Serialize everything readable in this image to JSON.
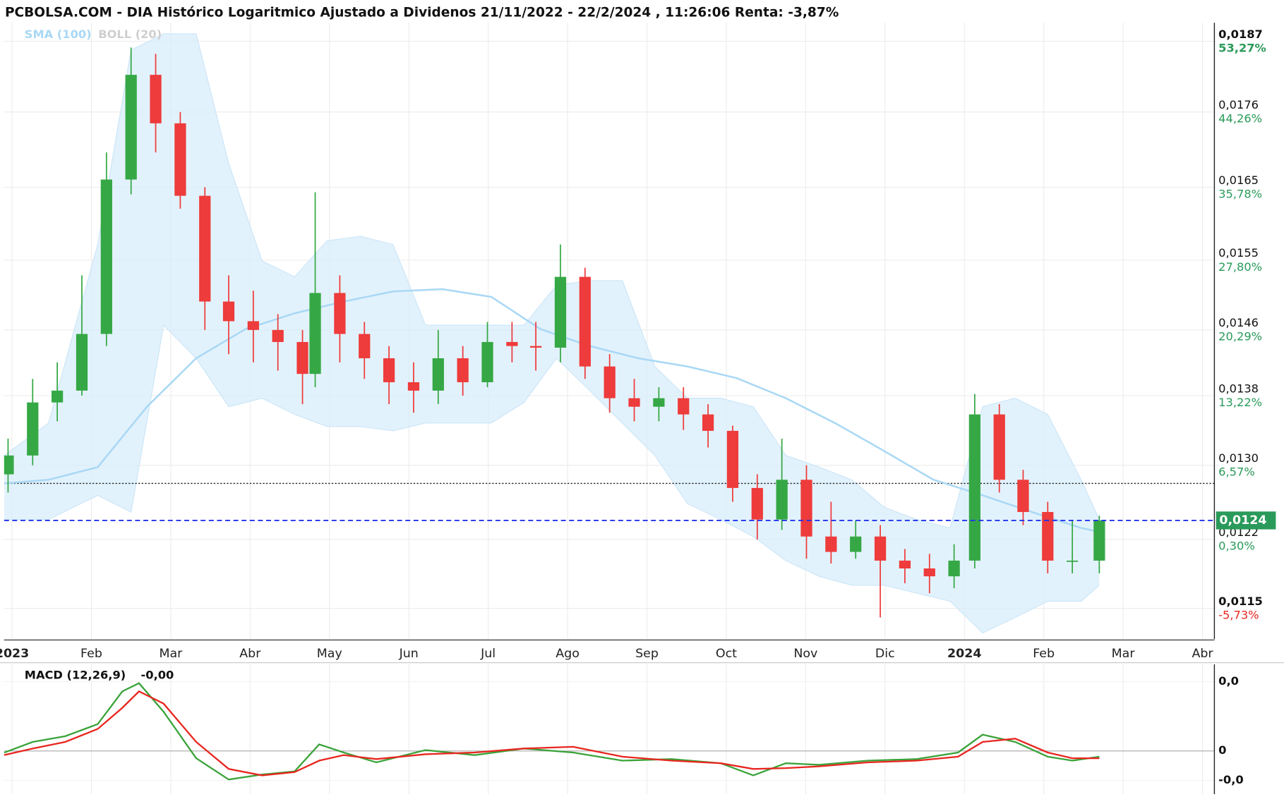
{
  "chart_data": [
    {
      "type": "candlestick",
      "title": "PCBOLSA.COM - DIA Histórico Logaritmico Ajustado a Dividenos 21/11/2022 - 22/2/2024 , 11:26:06 Renta: -3,87%",
      "log_scale": true,
      "grid": true,
      "xlim": [
        -0.1,
        15.15
      ],
      "xticks": [
        {
          "value": 0,
          "label": "2023"
        },
        {
          "value": 1,
          "label": "Feb"
        },
        {
          "value": 2,
          "label": "Mar"
        },
        {
          "value": 3,
          "label": "Abr"
        },
        {
          "value": 4,
          "label": "May"
        },
        {
          "value": 5,
          "label": "Jun"
        },
        {
          "value": 6,
          "label": "Jul"
        },
        {
          "value": 7,
          "label": "Ago"
        },
        {
          "value": 8,
          "label": "Sep"
        },
        {
          "value": 9,
          "label": "Oct"
        },
        {
          "value": 10,
          "label": "Nov"
        },
        {
          "value": 11,
          "label": "Dic"
        },
        {
          "value": 12,
          "label": "2024"
        },
        {
          "value": 13,
          "label": "Feb"
        },
        {
          "value": 14,
          "label": "Mar"
        },
        {
          "value": 15,
          "label": "Abr"
        }
      ],
      "ylim": [
        0.0112,
        0.019
      ],
      "yticks": [
        {
          "value": 0.0187,
          "label": "0,0187"
        },
        {
          "value": 0.0176,
          "label": "0,0176"
        },
        {
          "value": 0.0165,
          "label": "0,0165"
        },
        {
          "value": 0.0155,
          "label": "0,0155"
        },
        {
          "value": 0.0146,
          "label": "0,0146"
        },
        {
          "value": 0.0138,
          "label": "0,0138"
        },
        {
          "value": 0.013,
          "label": "0,0130"
        },
        {
          "value": 0.0122,
          "label": "0,0122"
        },
        {
          "value": 0.0115,
          "label": "0,0115"
        }
      ],
      "ytick_returns": [
        {
          "value": 53.27,
          "label": "53,27%"
        },
        {
          "value": 44.26,
          "label": "44,26%"
        },
        {
          "value": 35.78,
          "label": "35,78%"
        },
        {
          "value": 27.8,
          "label": "27,80%"
        },
        {
          "value": 20.29,
          "label": "20,29%"
        },
        {
          "value": 13.22,
          "label": "13,22%"
        },
        {
          "value": 6.57,
          "label": "6,57%"
        },
        {
          "value": 0.3,
          "label": "0,30%"
        },
        {
          "value": -5.73,
          "label": "-5,73%"
        }
      ],
      "current_price": {
        "value": 0.0124,
        "label": "0,0124"
      },
      "current_color": "#2a9a5a",
      "reference_line": 0.0128,
      "up_color": "#35a845",
      "down_color": "#ee3b3b",
      "x": [
        -0.05,
        0.26,
        0.57,
        0.88,
        1.19,
        1.5,
        1.81,
        2.12,
        2.43,
        2.73,
        3.04,
        3.35,
        3.66,
        3.82,
        4.13,
        4.44,
        4.75,
        5.06,
        5.37,
        5.68,
        5.99,
        6.3,
        6.6,
        6.91,
        7.22,
        7.53,
        7.84,
        8.15,
        8.46,
        8.77,
        9.08,
        9.39,
        9.7,
        10.01,
        10.32,
        10.63,
        10.94,
        11.25,
        11.56,
        11.87,
        12.13,
        12.44,
        12.74,
        13.05,
        13.36,
        13.7
      ],
      "open": [
        0.0129,
        0.01311,
        0.01372,
        0.01386,
        0.01455,
        0.01661,
        0.01817,
        0.01743,
        0.01638,
        0.01496,
        0.01471,
        0.0146,
        0.01445,
        0.01406,
        0.01507,
        0.01455,
        0.01425,
        0.01396,
        0.01386,
        0.01425,
        0.01396,
        0.01445,
        0.0144,
        0.01438,
        0.01528,
        0.01415,
        0.01377,
        0.01367,
        0.01377,
        0.01358,
        0.01339,
        0.01275,
        0.01241,
        0.01284,
        0.01223,
        0.01207,
        0.01223,
        0.01198,
        0.0119,
        0.01182,
        0.01198,
        0.01358,
        0.01284,
        0.01249,
        0.01198,
        0.01198
      ],
      "high": [
        0.0133,
        0.014,
        0.0142,
        0.0153,
        0.017,
        0.0186,
        0.0185,
        0.0176,
        0.0165,
        0.0153,
        0.0151,
        0.0148,
        0.0146,
        0.01643,
        0.0153,
        0.0147,
        0.0144,
        0.0142,
        0.0146,
        0.0144,
        0.0147,
        0.0147,
        0.0147,
        0.01571,
        0.0154,
        0.0143,
        0.014,
        0.0139,
        0.0139,
        0.0137,
        0.01345,
        0.0129,
        0.0133,
        0.013,
        0.0126,
        0.0124,
        0.01235,
        0.0121,
        0.01205,
        0.01215,
        0.01382,
        0.0137,
        0.01295,
        0.0126,
        0.0124,
        0.01245
      ],
      "low": [
        0.0127,
        0.013,
        0.0135,
        0.0138,
        0.0144,
        0.0164,
        0.017,
        0.0162,
        0.0146,
        0.0143,
        0.0142,
        0.0141,
        0.0137,
        0.0139,
        0.0142,
        0.014,
        0.0137,
        0.0136,
        0.0137,
        0.0138,
        0.0139,
        0.0142,
        0.0141,
        0.0142,
        0.014,
        0.0136,
        0.0135,
        0.0135,
        0.0134,
        0.0132,
        0.0126,
        0.0122,
        0.0123,
        0.012,
        0.01195,
        0.012,
        0.01141,
        0.01175,
        0.01165,
        0.0117,
        0.0119,
        0.0127,
        0.01235,
        0.01185,
        0.01185,
        0.01185
      ],
      "close": [
        0.01311,
        0.01372,
        0.01386,
        0.01455,
        0.01661,
        0.01817,
        0.01743,
        0.01638,
        0.01496,
        0.01471,
        0.0146,
        0.01445,
        0.01406,
        0.01507,
        0.01455,
        0.01425,
        0.01396,
        0.01386,
        0.01425,
        0.01396,
        0.01445,
        0.0144,
        0.01438,
        0.01528,
        0.01415,
        0.01377,
        0.01367,
        0.01377,
        0.01358,
        0.01339,
        0.01275,
        0.01241,
        0.01284,
        0.01223,
        0.01207,
        0.01223,
        0.01198,
        0.0119,
        0.01182,
        0.01198,
        0.01358,
        0.01284,
        0.01249,
        0.01198,
        0.01198,
        0.0124
      ],
      "sma": {
        "name": "SMA (100)",
        "color": "#a9d8f5",
        "x": [
          -0.1,
          0.46,
          1.08,
          1.7,
          2.32,
          2.94,
          3.56,
          4.18,
          4.8,
          5.42,
          6.04,
          6.66,
          7.28,
          7.89,
          8.51,
          9.13,
          9.75,
          10.37,
          10.99,
          11.61,
          12.23,
          12.85,
          13.47,
          13.7
        ],
        "values": [
          0.0128,
          0.01284,
          0.01298,
          0.01367,
          0.01425,
          0.01461,
          0.01481,
          0.01496,
          0.01509,
          0.01512,
          0.01502,
          0.01461,
          0.0144,
          0.01425,
          0.01415,
          0.01401,
          0.01377,
          0.01348,
          0.01316,
          0.01284,
          0.01267,
          0.01249,
          0.01232,
          0.01228
        ]
      },
      "bollinger": {
        "name": "BOLL (20)",
        "color": "#d8edfb",
        "label_color": "#cfcfcf",
        "x": [
          -0.1,
          0.46,
          1.08,
          1.5,
          1.91,
          2.32,
          2.73,
          3.15,
          3.56,
          3.97,
          4.39,
          4.8,
          5.21,
          5.62,
          6.04,
          6.45,
          6.86,
          7.28,
          7.69,
          8.1,
          8.51,
          8.93,
          9.34,
          9.75,
          10.17,
          10.58,
          10.99,
          11.4,
          11.82,
          12.23,
          12.64,
          13.05,
          13.47,
          13.7
        ],
        "upper": [
          0.01311,
          0.01348,
          0.01571,
          0.01856,
          0.01882,
          0.01882,
          0.01684,
          0.01549,
          0.01528,
          0.01576,
          0.01582,
          0.01571,
          0.01466,
          0.01466,
          0.01466,
          0.01466,
          0.01517,
          0.01523,
          0.01523,
          0.01415,
          0.01377,
          0.01377,
          0.01367,
          0.01311,
          0.01298,
          0.01284,
          0.01254,
          0.01241,
          0.01232,
          0.01367,
          0.01377,
          0.01358,
          0.01284,
          0.01241
        ],
        "lower": [
          0.01241,
          0.01241,
          0.01267,
          0.01249,
          0.01466,
          0.01425,
          0.01367,
          0.01377,
          0.01358,
          0.01344,
          0.01344,
          0.01339,
          0.01348,
          0.01348,
          0.01348,
          0.01372,
          0.01425,
          0.01386,
          0.01348,
          0.01311,
          0.01258,
          0.01241,
          0.01223,
          0.01198,
          0.01182,
          0.01173,
          0.01173,
          0.01165,
          0.01157,
          0.01126,
          0.01141,
          0.01157,
          0.01157,
          0.01173
        ]
      }
    },
    {
      "type": "line",
      "title": "MACD (12,26,9)",
      "annotation": "-0,00",
      "ylim": [
        -0.00025,
        0.0005
      ],
      "yticks": [
        {
          "value": 0.0004,
          "label": "0,0"
        },
        0,
        {
          "value": -0.00017,
          "label": "-0,0"
        }
      ],
      "ytick_colors": [
        "#e8261f",
        "#111111",
        "#1a8a1a"
      ],
      "x": [
        -0.1,
        0.26,
        0.67,
        1.08,
        1.39,
        1.6,
        1.91,
        2.32,
        2.73,
        3.15,
        3.56,
        3.87,
        4.18,
        4.59,
        5.21,
        5.83,
        6.45,
        7.07,
        7.69,
        8.31,
        8.93,
        9.34,
        9.75,
        10.17,
        10.78,
        11.4,
        11.92,
        12.23,
        12.64,
        13.05,
        13.36,
        13.7
      ],
      "series": [
        {
          "color": "#3aa33a",
          "values": [
            -1e-05,
            5.2e-05,
            8.5e-05,
            0.000155,
            0.000344,
            0.000391,
            0.000226,
            -4.2e-05,
            -0.000165,
            -0.000136,
            -0.000118,
            3.8e-05,
            -9e-06,
            -6.6e-05,
            5e-06,
            -2.4e-05,
            1.4e-05,
            -9e-06,
            -5.6e-05,
            -4.7e-05,
            -7.1e-05,
            -0.000141,
            -7.1e-05,
            -8e-05,
            -5.6e-05,
            -4.7e-05,
            -9e-06,
            9.4e-05,
            5.2e-05,
            -3.3e-05,
            -5.6e-05,
            -3.3e-05
          ]
        },
        {
          "color": "#e8261f",
          "values": [
            -2.4e-05,
            1.4e-05,
            5.2e-05,
            0.000127,
            0.000249,
            0.000344,
            0.000273,
            5.2e-05,
            -0.000104,
            -0.000141,
            -0.000122,
            -5.6e-05,
            -2.4e-05,
            -4.7e-05,
            -1.9e-05,
            -9e-06,
            1.4e-05,
            2.4e-05,
            -3.3e-05,
            -5.6e-05,
            -7.1e-05,
            -0.000104,
            -9.9e-05,
            -8.9e-05,
            -6.6e-05,
            -5.6e-05,
            -3.3e-05,
            5.2e-05,
            7.1e-05,
            -9e-06,
            -4.2e-05,
            -4.2e-05
          ]
        }
      ]
    }
  ]
}
